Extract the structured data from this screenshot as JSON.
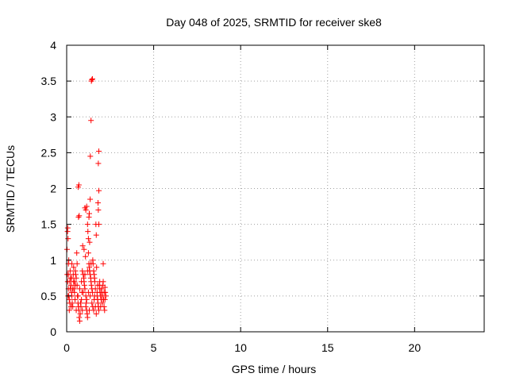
{
  "chart_data": {
    "type": "scatter",
    "title": "Day 048 of 2025, SRMTID for receiver ske8",
    "xlabel": "GPS time / hours",
    "ylabel": "SRMTID / TECUs",
    "xlim": [
      0,
      24
    ],
    "ylim": [
      0,
      4
    ],
    "xticks": [
      0,
      5,
      10,
      15,
      20
    ],
    "yticks": [
      0,
      0.5,
      1,
      1.5,
      2,
      2.5,
      3,
      3.5,
      4
    ],
    "ytick_labels": [
      "0",
      "0.5",
      "1",
      "1.5",
      "2",
      "2.5",
      "3",
      "3.5",
      "4"
    ],
    "grid": true,
    "marker": "plus",
    "series": [
      {
        "name": "SRMTID",
        "color": "#ff0000",
        "points": [
          [
            0.02,
            1.15
          ],
          [
            0.05,
            1.4
          ],
          [
            0.06,
            1.45
          ],
          [
            0.08,
            1.3
          ],
          [
            0.1,
            0.95
          ],
          [
            0.12,
            1.0
          ],
          [
            0.03,
            0.8
          ],
          [
            0.06,
            0.7
          ],
          [
            0.1,
            0.6
          ],
          [
            0.12,
            0.5
          ],
          [
            0.15,
            0.45
          ],
          [
            0.18,
            0.4
          ],
          [
            0.2,
            0.85
          ],
          [
            0.22,
            0.75
          ],
          [
            0.25,
            0.65
          ],
          [
            0.28,
            0.55
          ],
          [
            0.3,
            0.5
          ],
          [
            0.32,
            0.4
          ],
          [
            0.35,
            0.35
          ],
          [
            0.38,
            0.8
          ],
          [
            0.4,
            0.7
          ],
          [
            0.42,
            0.6
          ],
          [
            0.45,
            0.55
          ],
          [
            0.48,
            0.45
          ],
          [
            0.5,
            0.85
          ],
          [
            0.52,
            0.8
          ],
          [
            0.55,
            0.75
          ],
          [
            0.58,
            1.1
          ],
          [
            0.6,
            0.65
          ],
          [
            0.62,
            0.5
          ],
          [
            0.65,
            0.4
          ],
          [
            0.68,
            0.35
          ],
          [
            0.7,
            0.3
          ],
          [
            0.72,
            0.2
          ],
          [
            0.75,
            0.15
          ],
          [
            0.78,
            0.25
          ],
          [
            0.66,
            2.02
          ],
          [
            0.7,
            2.05
          ],
          [
            0.68,
            1.6
          ],
          [
            0.72,
            1.62
          ],
          [
            0.8,
            0.4
          ],
          [
            0.82,
            0.35
          ],
          [
            0.85,
            0.45
          ],
          [
            0.88,
            0.55
          ],
          [
            0.9,
            0.3
          ],
          [
            0.92,
            1.2
          ],
          [
            0.95,
            0.8
          ],
          [
            0.98,
            0.75
          ],
          [
            1.0,
            0.7
          ],
          [
            1.02,
            0.65
          ],
          [
            1.05,
            0.6
          ],
          [
            1.08,
            1.05
          ],
          [
            1.1,
            0.5
          ],
          [
            1.12,
            0.4
          ],
          [
            1.15,
            0.3
          ],
          [
            1.18,
            0.25
          ],
          [
            1.2,
            0.2
          ],
          [
            1.05,
            1.73
          ],
          [
            1.1,
            1.7
          ],
          [
            1.15,
            1.75
          ],
          [
            1.2,
            1.5
          ],
          [
            1.22,
            1.4
          ],
          [
            1.25,
            1.3
          ],
          [
            1.28,
            1.6
          ],
          [
            1.3,
            1.65
          ],
          [
            1.32,
            1.25
          ],
          [
            1.35,
            1.85
          ],
          [
            1.36,
            2.45
          ],
          [
            1.4,
            2.95
          ],
          [
            1.42,
            3.5
          ],
          [
            1.45,
            3.52
          ],
          [
            1.48,
            3.53
          ],
          [
            1.25,
            1.1
          ],
          [
            1.28,
            0.95
          ],
          [
            1.3,
            0.9
          ],
          [
            1.32,
            0.85
          ],
          [
            1.35,
            0.8
          ],
          [
            1.38,
            0.75
          ],
          [
            1.4,
            0.7
          ],
          [
            1.42,
            0.65
          ],
          [
            1.45,
            0.6
          ],
          [
            1.48,
            0.55
          ],
          [
            1.5,
            1.0
          ],
          [
            1.52,
            0.95
          ],
          [
            1.55,
            0.85
          ],
          [
            1.58,
            0.8
          ],
          [
            1.6,
            0.75
          ],
          [
            1.62,
            0.7
          ],
          [
            1.65,
            0.6
          ],
          [
            1.68,
            1.5
          ],
          [
            1.7,
            1.35
          ],
          [
            1.72,
            0.9
          ],
          [
            1.75,
            0.5
          ],
          [
            1.78,
            0.45
          ],
          [
            1.8,
            0.4
          ],
          [
            1.82,
            0.35
          ],
          [
            1.85,
            2.52
          ],
          [
            1.82,
            2.35
          ],
          [
            1.85,
            1.97
          ],
          [
            1.8,
            1.8
          ],
          [
            1.82,
            1.7
          ],
          [
            1.85,
            1.5
          ],
          [
            1.88,
            0.65
          ],
          [
            1.9,
            0.6
          ],
          [
            1.92,
            0.55
          ],
          [
            1.95,
            0.5
          ],
          [
            1.98,
            0.45
          ],
          [
            2.0,
            0.6
          ],
          [
            2.02,
            0.55
          ],
          [
            2.05,
            0.5
          ],
          [
            2.08,
            0.65
          ],
          [
            2.1,
            0.95
          ],
          [
            2.12,
            0.45
          ],
          [
            2.15,
            0.35
          ],
          [
            2.18,
            0.3
          ],
          [
            2.2,
            0.62
          ],
          [
            2.22,
            0.55
          ],
          [
            2.25,
            0.5
          ],
          [
            0.15,
            0.3
          ],
          [
            0.25,
            0.35
          ],
          [
            0.35,
            0.6
          ],
          [
            0.45,
            0.7
          ],
          [
            0.55,
            0.3
          ],
          [
            0.65,
            0.5
          ],
          [
            0.75,
            0.6
          ],
          [
            0.85,
            0.7
          ],
          [
            0.95,
            0.55
          ],
          [
            1.05,
            0.8
          ],
          [
            1.15,
            0.45
          ],
          [
            1.25,
            0.55
          ],
          [
            1.35,
            0.5
          ],
          [
            1.45,
            0.4
          ],
          [
            1.55,
            0.3
          ],
          [
            1.65,
            0.35
          ],
          [
            1.75,
            0.55
          ],
          [
            1.85,
            0.3
          ],
          [
            1.95,
            0.35
          ],
          [
            2.05,
            0.4
          ],
          [
            0.4,
            0.9
          ],
          [
            0.5,
            0.65
          ],
          [
            0.6,
            0.95
          ],
          [
            0.9,
            0.85
          ],
          [
            1.0,
            1.15
          ],
          [
            1.1,
            0.35
          ],
          [
            1.2,
            0.85
          ],
          [
            1.3,
            0.3
          ],
          [
            1.4,
            0.95
          ],
          [
            1.5,
            0.35
          ],
          [
            1.6,
            0.5
          ],
          [
            1.7,
            0.25
          ],
          [
            2.15,
            0.55
          ],
          [
            2.2,
            0.45
          ],
          [
            2.1,
            0.7
          ],
          [
            1.9,
            0.7
          ],
          [
            1.78,
            0.65
          ],
          [
            1.58,
            0.45
          ],
          [
            0.3,
            0.95
          ],
          [
            0.2,
            0.6
          ],
          [
            0.1,
            0.8
          ],
          [
            0.08,
            0.5
          ],
          [
            0.18,
            0.7
          ],
          [
            0.28,
            0.75
          ]
        ]
      }
    ]
  }
}
